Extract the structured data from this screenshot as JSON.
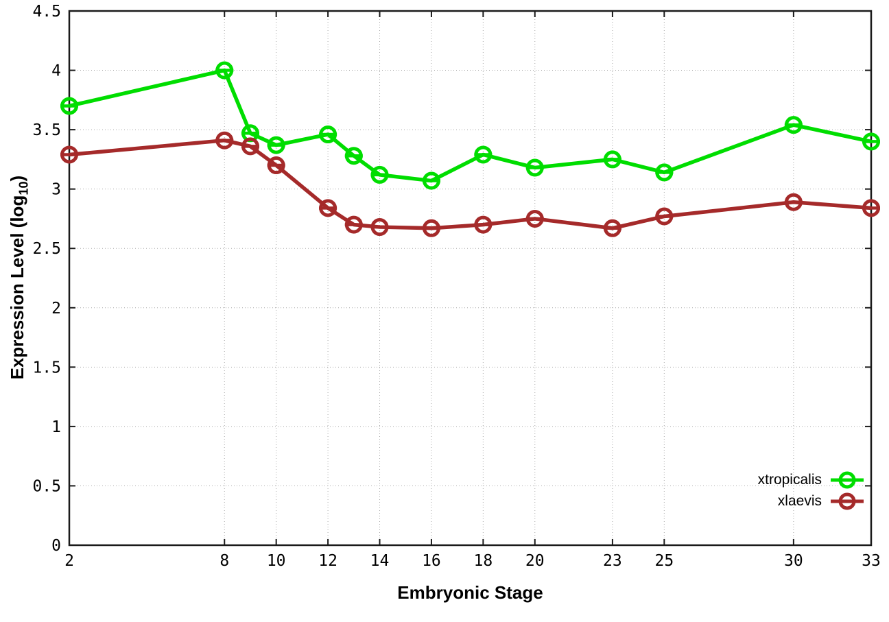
{
  "chart_data": {
    "type": "line",
    "title": "",
    "xlabel": "Embryonic Stage",
    "ylabel": "Expression Level (log10)",
    "ylabel_parts": {
      "prefix": "Expression Level (log",
      "sub": "10",
      "suffix": ")"
    },
    "x": [
      2,
      8,
      9,
      10,
      12,
      13,
      14,
      16,
      18,
      20,
      23,
      25,
      30,
      33
    ],
    "xticks": [
      2,
      8,
      10,
      12,
      14,
      16,
      18,
      20,
      23,
      25,
      30,
      33
    ],
    "yticks": [
      0,
      0.5,
      1,
      1.5,
      2,
      2.5,
      3,
      3.5,
      4,
      4.5
    ],
    "xlim": [
      2,
      33
    ],
    "ylim": [
      0,
      4.5
    ],
    "grid": true,
    "legend_position": "bottom-right",
    "series": [
      {
        "name": "xtropicalis",
        "color": "#00dd00",
        "marker": "open-circle",
        "values": [
          3.7,
          4.0,
          3.47,
          3.37,
          3.46,
          3.28,
          3.12,
          3.07,
          3.29,
          3.18,
          3.25,
          3.14,
          3.54,
          3.4
        ]
      },
      {
        "name": "xlaevis",
        "color": "#a52a2a",
        "marker": "open-circle",
        "values": [
          3.29,
          3.41,
          3.36,
          3.2,
          2.84,
          2.7,
          2.68,
          2.67,
          2.7,
          2.75,
          2.67,
          2.77,
          2.89,
          2.84
        ]
      }
    ]
  },
  "colors": {
    "background": "#ffffff",
    "axis": "#1a1a1a",
    "grid": "#a9a9a9",
    "text": "#000000"
  }
}
